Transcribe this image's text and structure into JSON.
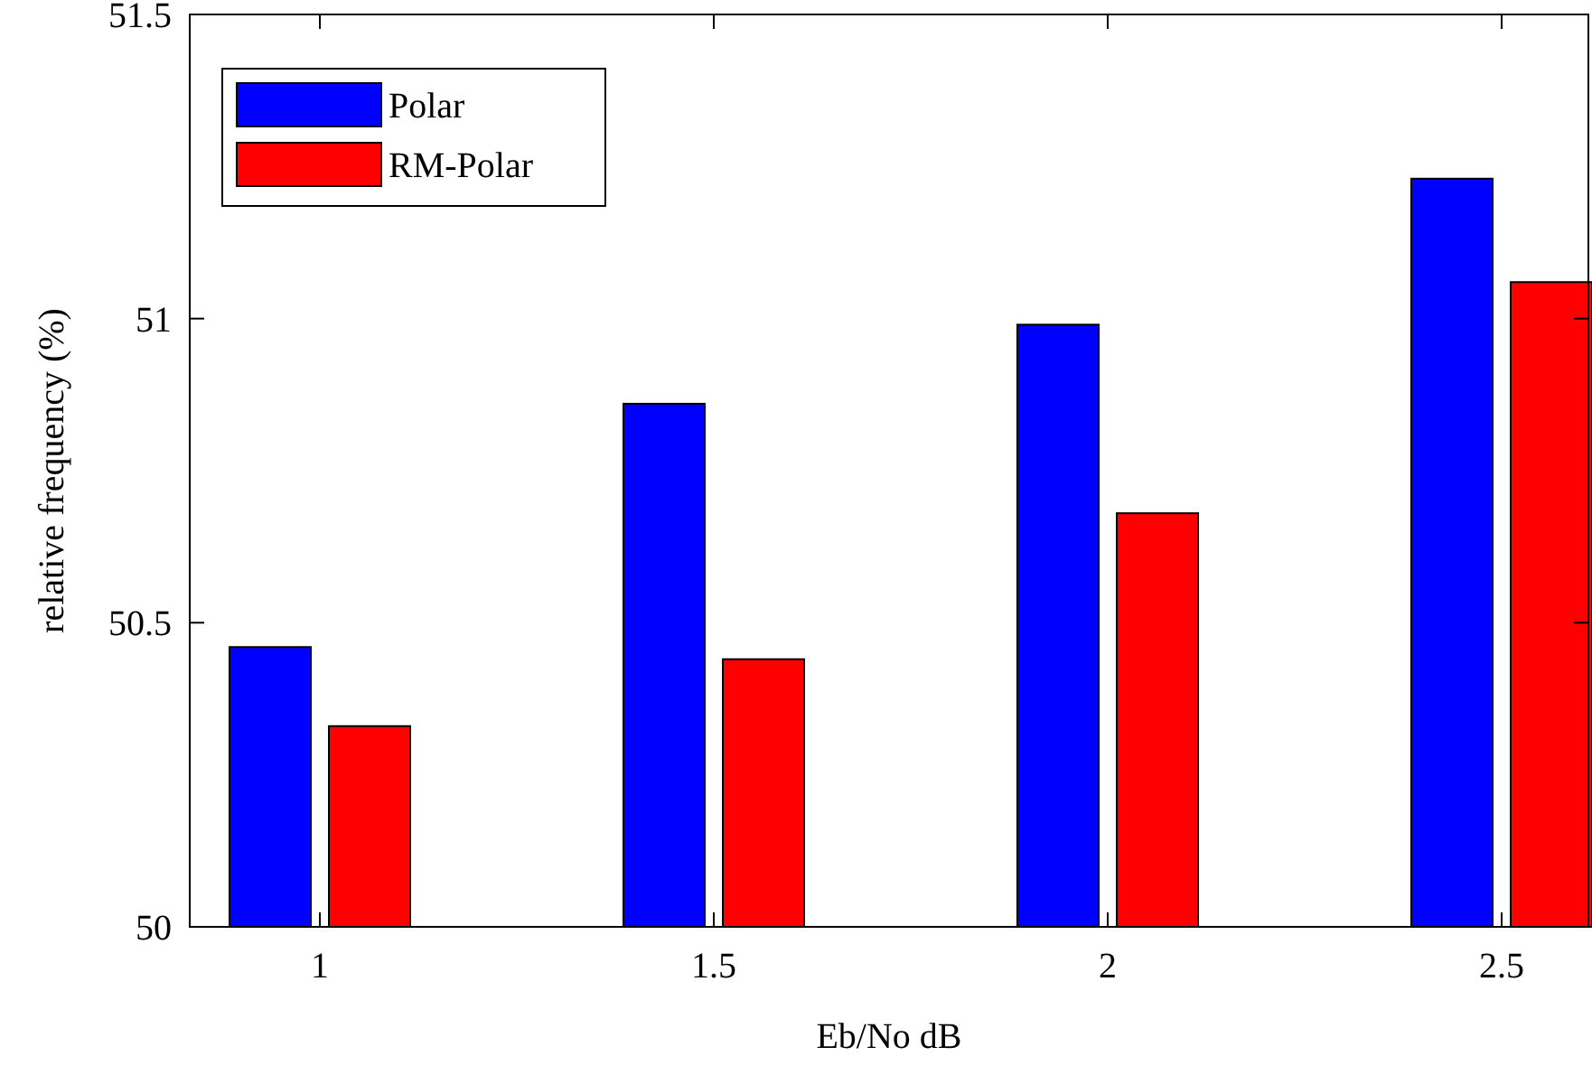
{
  "chart_data": {
    "type": "bar",
    "xlabel": "Eb/No dB",
    "ylabel": "relative frequency (%)",
    "categories": [
      "1",
      "1.5",
      "2",
      "2.5"
    ],
    "series": [
      {
        "name": "Polar",
        "color": "#0000ff",
        "values": [
          50.46,
          50.86,
          50.99,
          51.23
        ]
      },
      {
        "name": "RM-Polar",
        "color": "#ff0000",
        "values": [
          50.33,
          50.44,
          50.68,
          51.06
        ]
      }
    ],
    "ylim": [
      50,
      51.5
    ],
    "yticks": [
      50,
      50.5,
      51,
      51.5
    ],
    "legend": "top left",
    "grid": false
  }
}
